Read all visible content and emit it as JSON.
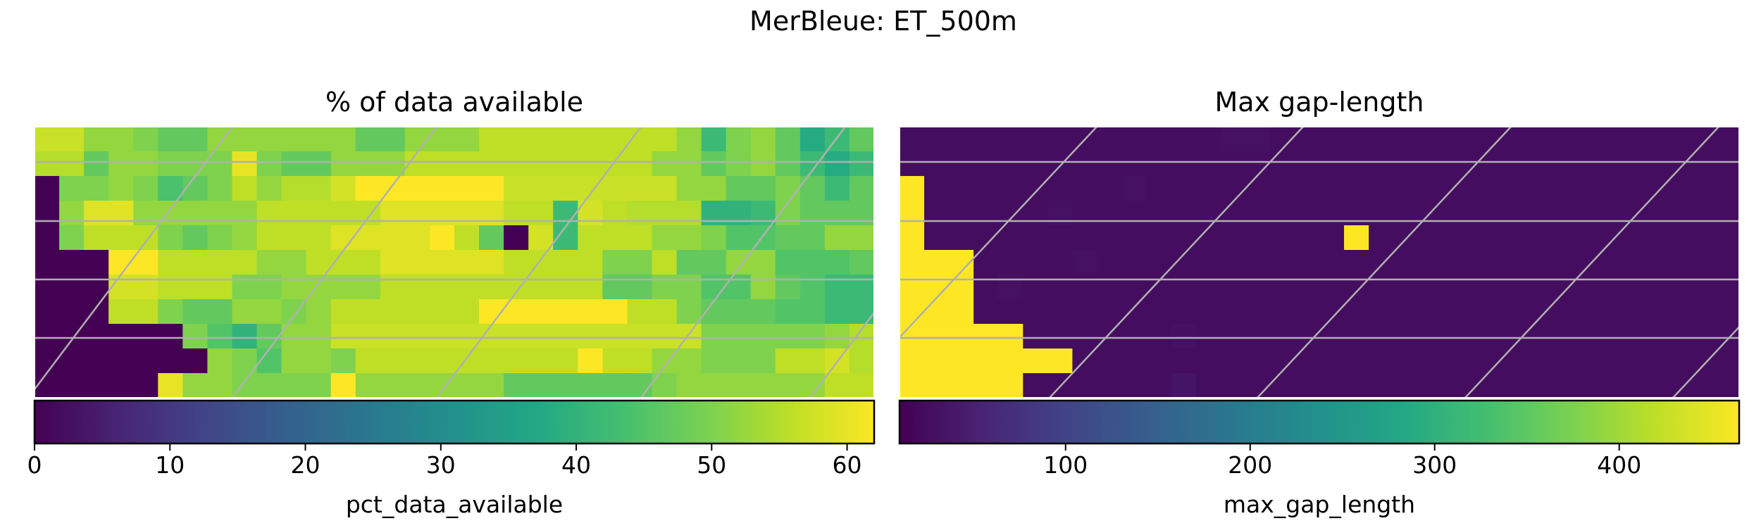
{
  "figure": {
    "suptitle": "MerBleue: ET_500m"
  },
  "chart_data": [
    {
      "type": "heatmap",
      "title": "% of data available",
      "rows": 11,
      "cols": 34,
      "colorbar": {
        "label": "pct_data_available",
        "vmin": 0,
        "vmax": 62,
        "ticks": [
          0,
          10,
          20,
          30,
          40,
          50,
          60
        ],
        "tick_labels": [
          "0",
          "10",
          "20",
          "30",
          "40",
          "50",
          "60"
        ]
      },
      "grid": "on",
      "values": [
        [
          57,
          57,
          52,
          52,
          50,
          47,
          47,
          52,
          52,
          52,
          52,
          52,
          52,
          47,
          47,
          52,
          52,
          52,
          56,
          56,
          56,
          56,
          56,
          56,
          56,
          56,
          52,
          42,
          50,
          52,
          47,
          38,
          42,
          47
        ],
        [
          55,
          55,
          47,
          52,
          52,
          50,
          50,
          50,
          60,
          50,
          47,
          47,
          52,
          52,
          52,
          56,
          56,
          56,
          56,
          56,
          56,
          56,
          56,
          56,
          56,
          52,
          52,
          47,
          50,
          52,
          47,
          42,
          38,
          42
        ],
        [
          0,
          50,
          50,
          52,
          50,
          44,
          47,
          50,
          56,
          52,
          55,
          55,
          58,
          62,
          62,
          62,
          62,
          62,
          62,
          57,
          57,
          57,
          57,
          57,
          57,
          57,
          52,
          52,
          47,
          47,
          50,
          47,
          42,
          47
        ],
        [
          0,
          52,
          59,
          59,
          52,
          52,
          52,
          52,
          52,
          56,
          56,
          56,
          56,
          56,
          59,
          59,
          59,
          59,
          59,
          56,
          56,
          42,
          58,
          56,
          55,
          55,
          55,
          40,
          40,
          42,
          50,
          47,
          47,
          47
        ],
        [
          0,
          50,
          56,
          56,
          56,
          50,
          47,
          50,
          52,
          56,
          56,
          56,
          59,
          59,
          59,
          59,
          62,
          56,
          47,
          0,
          58,
          42,
          56,
          56,
          56,
          52,
          52,
          50,
          45,
          45,
          47,
          47,
          52,
          52
        ],
        [
          0,
          0,
          0,
          62,
          62,
          56,
          56,
          56,
          56,
          52,
          52,
          56,
          56,
          56,
          59,
          59,
          59,
          59,
          59,
          56,
          56,
          56,
          56,
          50,
          50,
          56,
          47,
          47,
          52,
          52,
          45,
          45,
          45,
          47
        ],
        [
          0,
          0,
          0,
          58,
          58,
          56,
          56,
          56,
          50,
          50,
          52,
          52,
          52,
          52,
          56,
          56,
          56,
          56,
          56,
          56,
          56,
          56,
          56,
          47,
          47,
          50,
          50,
          45,
          45,
          52,
          47,
          45,
          42,
          42
        ],
        [
          0,
          0,
          0,
          56,
          56,
          50,
          47,
          47,
          52,
          52,
          50,
          52,
          56,
          56,
          56,
          56,
          56,
          56,
          62,
          62,
          62,
          62,
          62,
          62,
          56,
          56,
          50,
          47,
          47,
          47,
          45,
          45,
          42,
          42
        ],
        [
          0,
          0,
          0,
          0,
          0,
          0,
          50,
          45,
          40,
          47,
          52,
          52,
          57,
          57,
          57,
          57,
          57,
          57,
          57,
          57,
          57,
          57,
          57,
          57,
          57,
          57,
          57,
          50,
          50,
          50,
          50,
          50,
          52,
          55
        ],
        [
          0,
          0,
          0,
          0,
          0,
          0,
          0,
          52,
          50,
          45,
          52,
          52,
          50,
          56,
          56,
          56,
          56,
          56,
          56,
          56,
          56,
          56,
          62,
          56,
          56,
          52,
          52,
          50,
          50,
          50,
          56,
          56,
          58,
          55
        ],
        [
          0,
          0,
          0,
          0,
          0,
          60,
          52,
          52,
          50,
          50,
          50,
          50,
          62,
          52,
          52,
          52,
          52,
          52,
          52,
          47,
          47,
          47,
          47,
          47,
          47,
          50,
          52,
          52,
          52,
          52,
          52,
          52,
          56,
          56
        ]
      ]
    },
    {
      "type": "heatmap",
      "title": "Max gap-length",
      "rows": 11,
      "cols": 34,
      "colorbar": {
        "label": "max_gap_length",
        "vmin": 10,
        "vmax": 465,
        "ticks": [
          100,
          200,
          300,
          400
        ],
        "tick_labels": [
          "100",
          "200",
          "300",
          "400"
        ]
      },
      "grid": "on",
      "values": [
        [
          25,
          25,
          25,
          25,
          25,
          25,
          25,
          25,
          25,
          25,
          25,
          25,
          25,
          30,
          30,
          25,
          25,
          25,
          25,
          25,
          25,
          25,
          25,
          25,
          25,
          25,
          25,
          25,
          25,
          25,
          25,
          25,
          25,
          25
        ],
        [
          25,
          25,
          25,
          25,
          25,
          25,
          25,
          25,
          25,
          25,
          25,
          25,
          25,
          25,
          25,
          25,
          25,
          25,
          25,
          25,
          25,
          25,
          25,
          25,
          25,
          25,
          25,
          25,
          25,
          25,
          25,
          25,
          25,
          25
        ],
        [
          465,
          25,
          25,
          25,
          25,
          25,
          25,
          25,
          25,
          30,
          25,
          25,
          25,
          25,
          25,
          25,
          25,
          25,
          25,
          25,
          25,
          25,
          25,
          25,
          25,
          25,
          25,
          25,
          25,
          25,
          25,
          25,
          25,
          25
        ],
        [
          465,
          25,
          25,
          25,
          25,
          25,
          30,
          25,
          25,
          25,
          25,
          25,
          25,
          25,
          25,
          25,
          25,
          25,
          25,
          25,
          25,
          25,
          25,
          25,
          25,
          25,
          25,
          25,
          25,
          25,
          25,
          25,
          25,
          25
        ],
        [
          465,
          25,
          25,
          25,
          25,
          25,
          25,
          25,
          25,
          25,
          25,
          25,
          25,
          25,
          25,
          25,
          25,
          25,
          465,
          25,
          25,
          25,
          25,
          25,
          25,
          25,
          25,
          25,
          25,
          25,
          25,
          25,
          25,
          25
        ],
        [
          465,
          465,
          465,
          25,
          25,
          25,
          25,
          30,
          25,
          25,
          25,
          25,
          25,
          25,
          25,
          25,
          25,
          25,
          25,
          25,
          25,
          25,
          25,
          25,
          25,
          25,
          25,
          25,
          25,
          25,
          25,
          25,
          25,
          25
        ],
        [
          465,
          465,
          465,
          25,
          30,
          25,
          25,
          25,
          25,
          25,
          25,
          25,
          25,
          25,
          25,
          25,
          25,
          25,
          25,
          25,
          25,
          25,
          25,
          25,
          25,
          25,
          25,
          25,
          25,
          25,
          25,
          25,
          25,
          25
        ],
        [
          465,
          465,
          465,
          25,
          25,
          25,
          25,
          25,
          25,
          25,
          25,
          25,
          25,
          25,
          25,
          25,
          25,
          25,
          25,
          25,
          25,
          25,
          25,
          25,
          25,
          25,
          25,
          25,
          25,
          25,
          25,
          25,
          25,
          25
        ],
        [
          465,
          465,
          465,
          465,
          465,
          25,
          25,
          25,
          25,
          25,
          25,
          30,
          25,
          25,
          25,
          25,
          25,
          25,
          25,
          25,
          25,
          25,
          25,
          25,
          25,
          25,
          25,
          25,
          25,
          25,
          25,
          25,
          25,
          25
        ],
        [
          465,
          465,
          465,
          465,
          465,
          465,
          465,
          25,
          25,
          25,
          25,
          25,
          25,
          25,
          25,
          25,
          25,
          25,
          25,
          25,
          25,
          25,
          25,
          25,
          25,
          25,
          25,
          25,
          25,
          25,
          25,
          25,
          25,
          25
        ],
        [
          465,
          465,
          465,
          465,
          465,
          25,
          25,
          25,
          25,
          25,
          25,
          35,
          25,
          25,
          25,
          25,
          25,
          25,
          25,
          25,
          25,
          25,
          25,
          25,
          25,
          25,
          25,
          25,
          25,
          25,
          25,
          25,
          25,
          25
        ]
      ]
    }
  ]
}
